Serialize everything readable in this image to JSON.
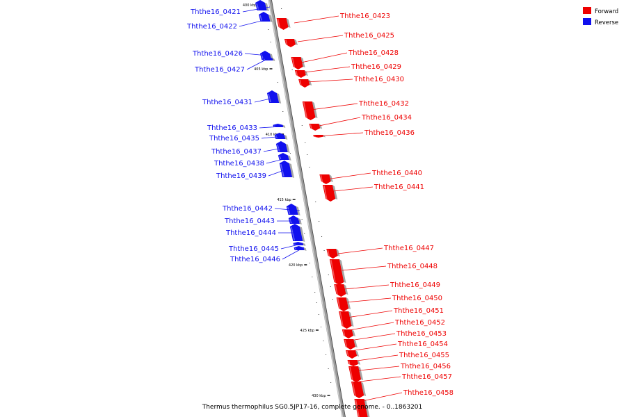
{
  "caption": "Thermus thermophilus SG0.5JP17-16, complete genome. - 0..1863201",
  "legend": [
    {
      "key": "forward",
      "label": "Forward",
      "color": "#ee0000"
    },
    {
      "key": "reverse",
      "label": "Reverse",
      "color": "#1010ee"
    }
  ],
  "colors": {
    "forward": "#ee0000",
    "reverse": "#1010ee",
    "axis": "#9a9a9a"
  },
  "ticks": [
    "400 kbp",
    "405 kbp",
    "410 kbp",
    "415 kbp",
    "420 kbp",
    "425 kbp",
    "430 kbp"
  ],
  "genes": [
    {
      "id": "Ththe16_0421",
      "strand": "reverse"
    },
    {
      "id": "Ththe16_0422",
      "strand": "reverse"
    },
    {
      "id": "Ththe16_0423",
      "strand": "forward"
    },
    {
      "id": "Ththe16_0425",
      "strand": "forward"
    },
    {
      "id": "Ththe16_0426",
      "strand": "reverse"
    },
    {
      "id": "Ththe16_0427",
      "strand": "reverse"
    },
    {
      "id": "Ththe16_0428",
      "strand": "forward"
    },
    {
      "id": "Ththe16_0429",
      "strand": "forward"
    },
    {
      "id": "Ththe16_0430",
      "strand": "forward"
    },
    {
      "id": "Ththe16_0431",
      "strand": "reverse"
    },
    {
      "id": "Ththe16_0432",
      "strand": "forward"
    },
    {
      "id": "Ththe16_0433",
      "strand": "reverse"
    },
    {
      "id": "Ththe16_0434",
      "strand": "forward"
    },
    {
      "id": "Ththe16_0435",
      "strand": "reverse"
    },
    {
      "id": "Ththe16_0436",
      "strand": "forward"
    },
    {
      "id": "Ththe16_0437",
      "strand": "reverse"
    },
    {
      "id": "Ththe16_0438",
      "strand": "reverse"
    },
    {
      "id": "Ththe16_0439",
      "strand": "reverse"
    },
    {
      "id": "Ththe16_0440",
      "strand": "forward"
    },
    {
      "id": "Ththe16_0441",
      "strand": "forward"
    },
    {
      "id": "Ththe16_0442",
      "strand": "reverse"
    },
    {
      "id": "Ththe16_0443",
      "strand": "reverse"
    },
    {
      "id": "Ththe16_0444",
      "strand": "reverse"
    },
    {
      "id": "Ththe16_0445",
      "strand": "reverse"
    },
    {
      "id": "Ththe16_0446",
      "strand": "reverse"
    },
    {
      "id": "Ththe16_0447",
      "strand": "forward"
    },
    {
      "id": "Ththe16_0448",
      "strand": "forward"
    },
    {
      "id": "Ththe16_0449",
      "strand": "forward"
    },
    {
      "id": "Ththe16_0450",
      "strand": "forward"
    },
    {
      "id": "Ththe16_0451",
      "strand": "forward"
    },
    {
      "id": "Ththe16_0452",
      "strand": "forward"
    },
    {
      "id": "Ththe16_0453",
      "strand": "forward"
    },
    {
      "id": "Ththe16_0454",
      "strand": "forward"
    },
    {
      "id": "Ththe16_0455",
      "strand": "forward"
    },
    {
      "id": "Ththe16_0456",
      "strand": "forward"
    },
    {
      "id": "Ththe16_0457",
      "strand": "forward"
    },
    {
      "id": "Ththe16_0458",
      "strand": "forward"
    }
  ]
}
